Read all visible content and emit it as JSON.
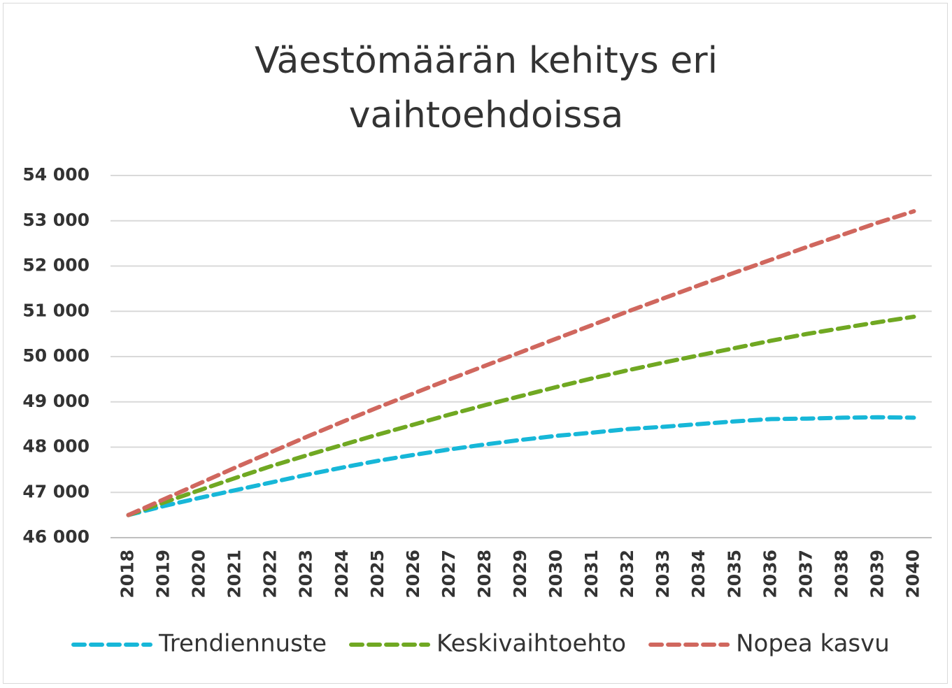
{
  "chart_data": {
    "type": "line",
    "title": "Väestömäärän kehitys eri vaihtoehdoissa",
    "categories": [
      "2018",
      "2019",
      "2020",
      "2021",
      "2022",
      "2023",
      "2024",
      "2025",
      "2026",
      "2027",
      "2028",
      "2029",
      "2030",
      "2031",
      "2032",
      "2033",
      "2034",
      "2035",
      "2036",
      "2037",
      "2038",
      "2039",
      "2040"
    ],
    "series": [
      {
        "name": "Trendiennuste",
        "color": "#17b7d8",
        "values": [
          46500,
          46700,
          46880,
          47050,
          47220,
          47390,
          47550,
          47700,
          47830,
          47950,
          48060,
          48160,
          48250,
          48320,
          48400,
          48450,
          48510,
          48570,
          48620,
          48630,
          48650,
          48660,
          48650
        ]
      },
      {
        "name": "Keskivaihtoehto",
        "color": "#70a822",
        "values": [
          46500,
          46780,
          47050,
          47320,
          47580,
          47820,
          48050,
          48280,
          48500,
          48720,
          48930,
          49130,
          49330,
          49520,
          49700,
          49870,
          50030,
          50190,
          50350,
          50500,
          50630,
          50760,
          50880
        ]
      },
      {
        "name": "Nopea kasvu",
        "color": "#d0675e",
        "values": [
          46500,
          46850,
          47200,
          47550,
          47890,
          48230,
          48560,
          48880,
          49190,
          49500,
          49800,
          50100,
          50400,
          50700,
          51000,
          51290,
          51580,
          51860,
          52140,
          52420,
          52690,
          52960,
          53210
        ]
      }
    ],
    "ylim": [
      46000,
      54000
    ],
    "yticks": [
      {
        "value": 46000,
        "label": "46 000"
      },
      {
        "value": 47000,
        "label": "47 000"
      },
      {
        "value": 48000,
        "label": "48 000"
      },
      {
        "value": 49000,
        "label": "49 000"
      },
      {
        "value": 50000,
        "label": "50 000"
      },
      {
        "value": 51000,
        "label": "51 000"
      },
      {
        "value": 52000,
        "label": "52 000"
      },
      {
        "value": 53000,
        "label": "53 000"
      },
      {
        "value": 54000,
        "label": "54 000"
      }
    ],
    "grid": true,
    "legend": "bottom"
  }
}
